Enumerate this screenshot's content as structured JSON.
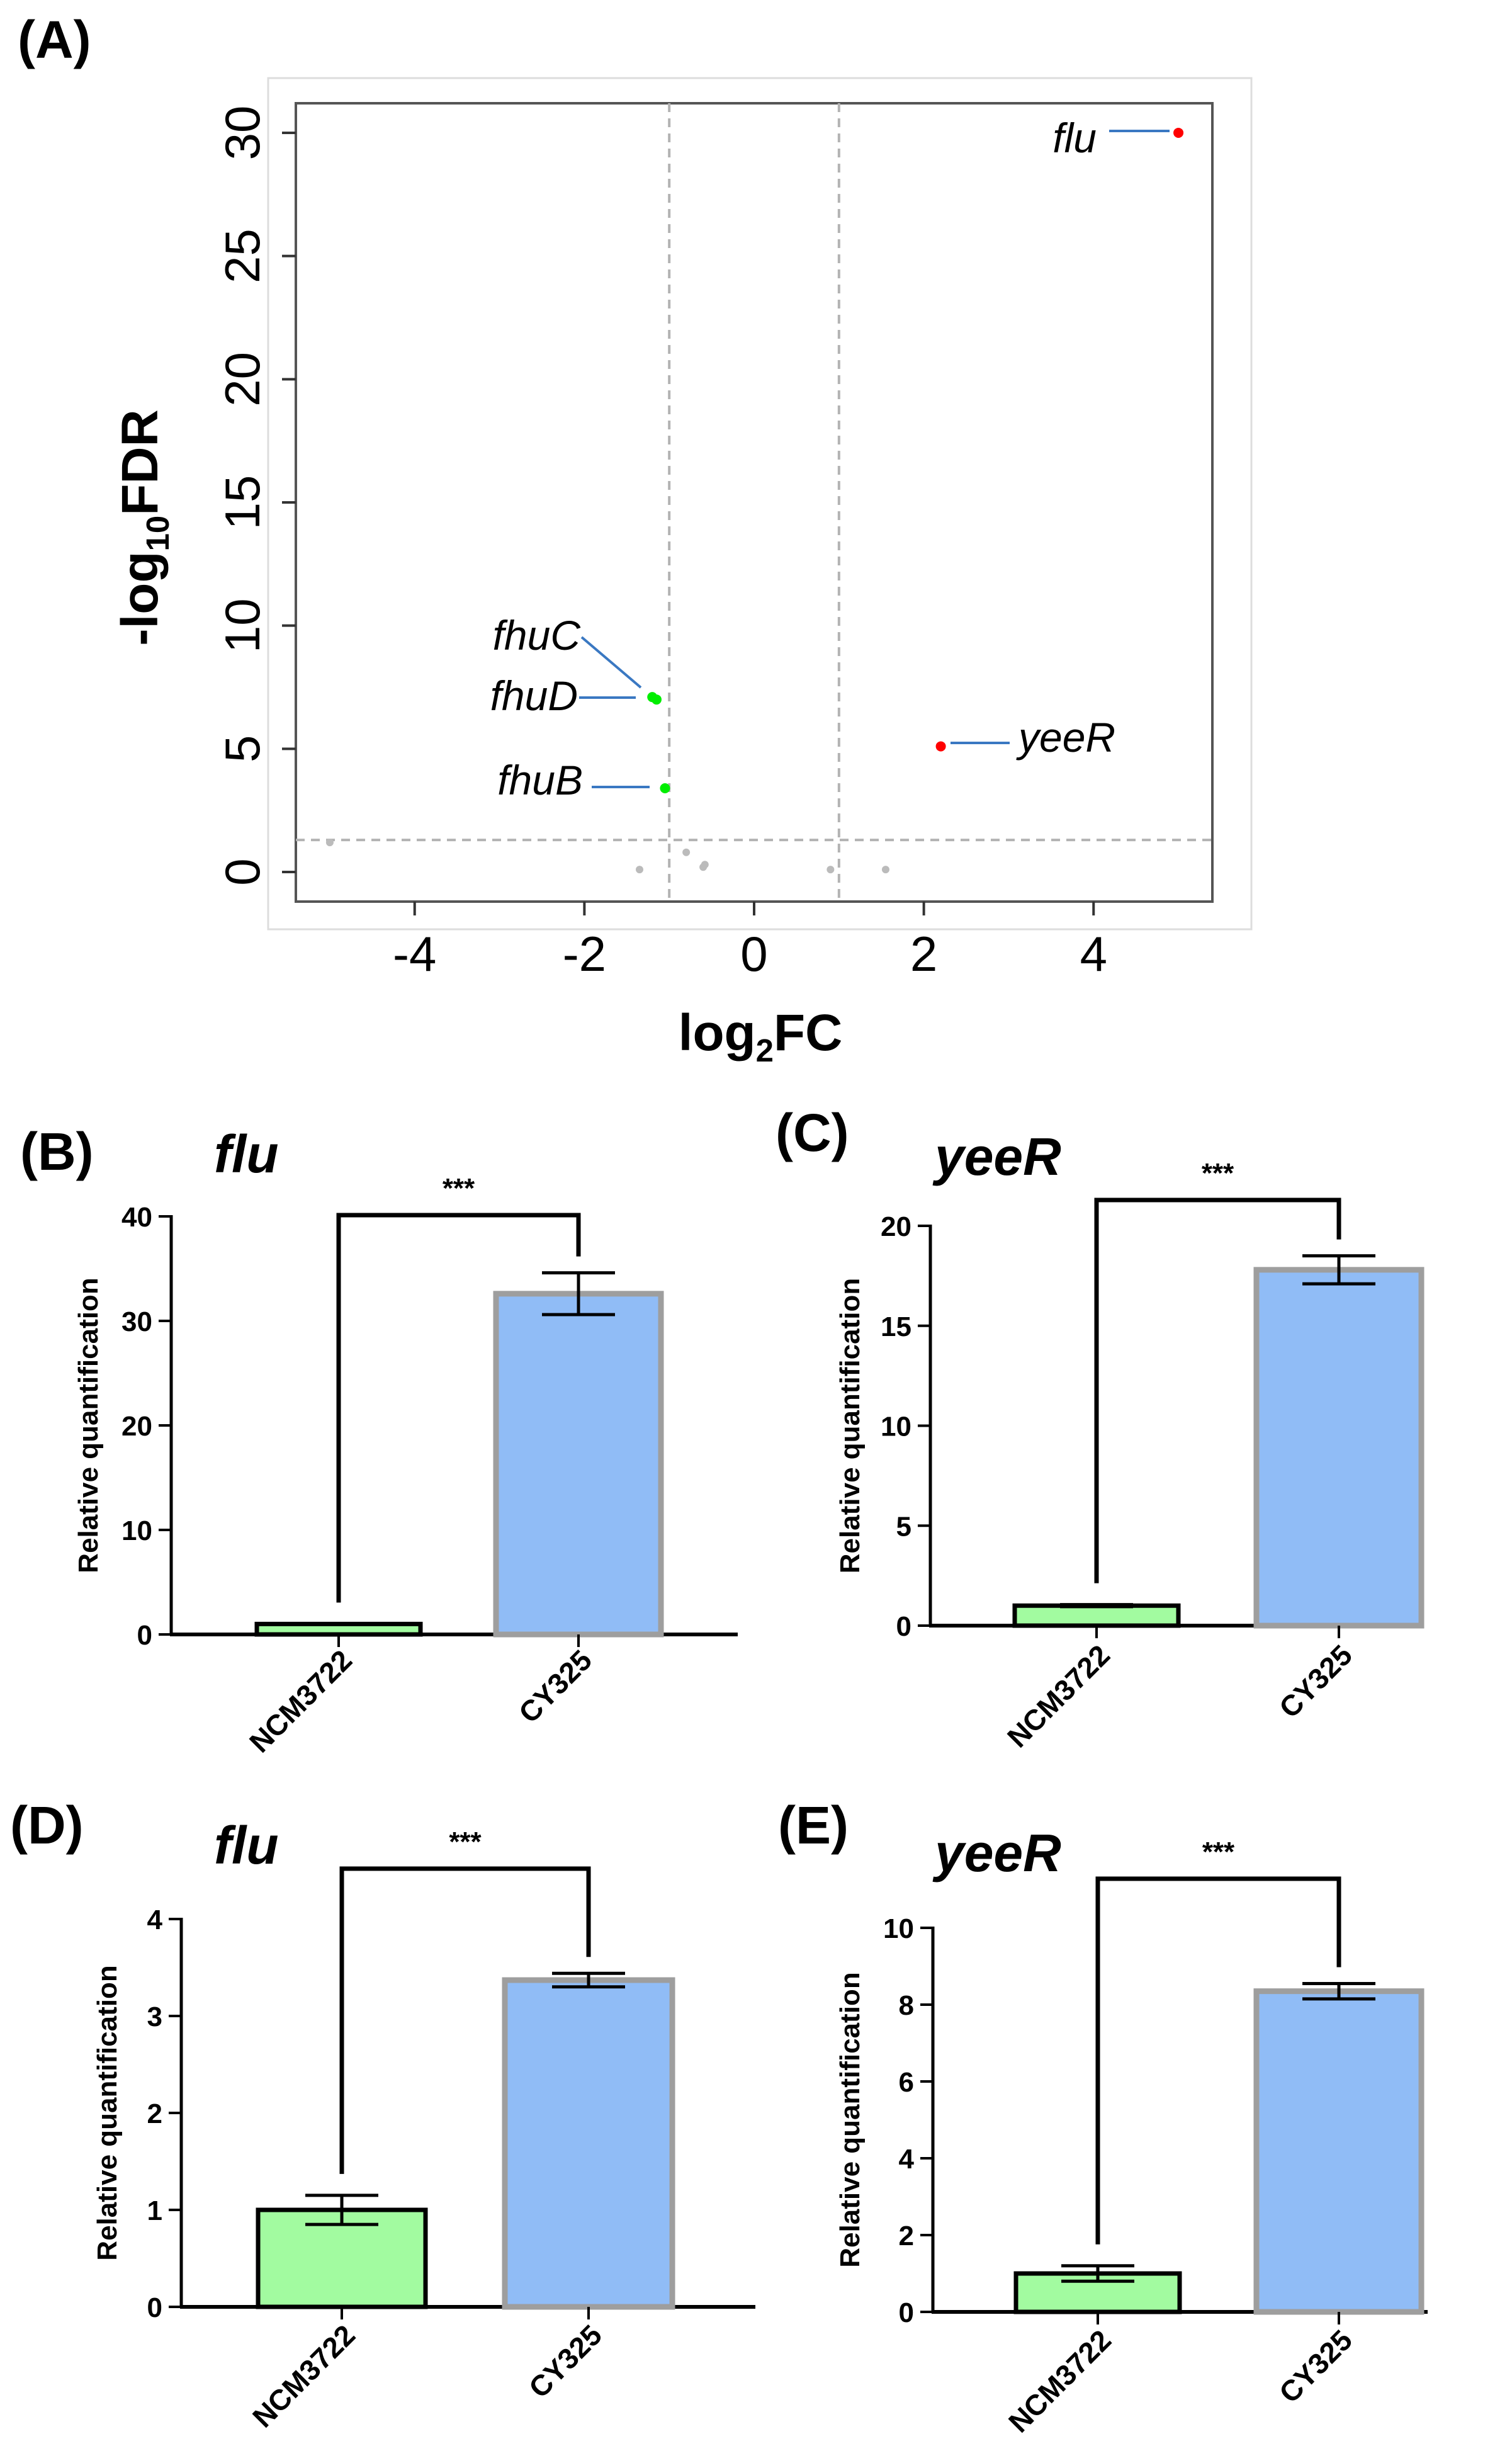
{
  "chart_data": [
    {
      "panel": "(A)",
      "type": "scatter",
      "title": "",
      "xlabel": "log2FC",
      "ylabel": "-log10FDR",
      "xlim": [
        -5.4,
        5.4
      ],
      "ylim": [
        -1.2,
        31.2
      ],
      "xticks": [
        -4,
        -2,
        0,
        2,
        4
      ],
      "yticks": [
        0,
        5,
        10,
        15,
        20,
        25,
        30
      ],
      "grid": false,
      "thresholds": {
        "x": [
          -1,
          1
        ],
        "y": 1.3
      },
      "colors": {
        "up": "#ff0000",
        "down": "#00ee00",
        "ns": "#bbbbbb",
        "label_line": "#3a78c2"
      },
      "points": [
        {
          "x": 5.0,
          "y": 30.0,
          "status": "up",
          "label": "flu"
        },
        {
          "x": 2.2,
          "y": 5.1,
          "status": "up",
          "label": "yeeR"
        },
        {
          "x": -1.2,
          "y": 7.1,
          "status": "down",
          "label": "fhuC"
        },
        {
          "x": -1.15,
          "y": 7.0,
          "status": "down",
          "label": "fhuD"
        },
        {
          "x": -1.05,
          "y": 3.4,
          "status": "down",
          "label": "fhuB"
        },
        {
          "x": -5.0,
          "y": 1.2,
          "status": "ns",
          "label": ""
        },
        {
          "x": -1.35,
          "y": 0.1,
          "status": "ns",
          "label": ""
        },
        {
          "x": -0.8,
          "y": 0.8,
          "status": "ns",
          "label": ""
        },
        {
          "x": -0.6,
          "y": 0.2,
          "status": "ns",
          "label": ""
        },
        {
          "x": -0.58,
          "y": 0.3,
          "status": "ns",
          "label": ""
        },
        {
          "x": 0.9,
          "y": 0.1,
          "status": "ns",
          "label": ""
        },
        {
          "x": 1.55,
          "y": 0.1,
          "status": "ns",
          "label": ""
        }
      ]
    },
    {
      "panel": "(B)",
      "type": "bar",
      "title": "flu",
      "ylabel": "Relative quantification",
      "categories": [
        "NCM3722",
        "CY325"
      ],
      "values": [
        1.0,
        32.6
      ],
      "errors": [
        0.0,
        2.0
      ],
      "ylim": [
        0,
        40
      ],
      "yticks": [
        0,
        10,
        20,
        30,
        40
      ],
      "significance": "***",
      "colors": [
        "#a2fba0",
        "#90bcf6"
      ]
    },
    {
      "panel": "(C)",
      "type": "bar",
      "title": "yeeR",
      "ylabel": "Relative quantification",
      "categories": [
        "NCM3722",
        "CY325"
      ],
      "values": [
        1.0,
        17.8
      ],
      "errors": [
        0.05,
        0.7
      ],
      "ylim": [
        0,
        20
      ],
      "yticks": [
        0,
        5,
        10,
        15,
        20
      ],
      "significance": "***",
      "colors": [
        "#a2fba0",
        "#90bcf6"
      ]
    },
    {
      "panel": "(D)",
      "type": "bar",
      "title": "flu",
      "ylabel": "Relative quantification",
      "categories": [
        "NCM3722",
        "CY325"
      ],
      "values": [
        1.0,
        3.37
      ],
      "errors": [
        0.15,
        0.07
      ],
      "ylim": [
        0,
        4
      ],
      "yticks": [
        0,
        1,
        2,
        3,
        4
      ],
      "significance": "***",
      "colors": [
        "#a2fba0",
        "#90bcf6"
      ]
    },
    {
      "panel": "(E)",
      "type": "bar",
      "title": "yeeR",
      "ylabel": "Relative quantification",
      "categories": [
        "NCM3722",
        "CY325"
      ],
      "values": [
        1.0,
        8.35
      ],
      "errors": [
        0.2,
        0.2
      ],
      "ylim": [
        0,
        10
      ],
      "yticks": [
        0,
        2,
        4,
        6,
        8,
        10
      ],
      "significance": "***",
      "colors": [
        "#a2fba0",
        "#90bcf6"
      ]
    }
  ]
}
